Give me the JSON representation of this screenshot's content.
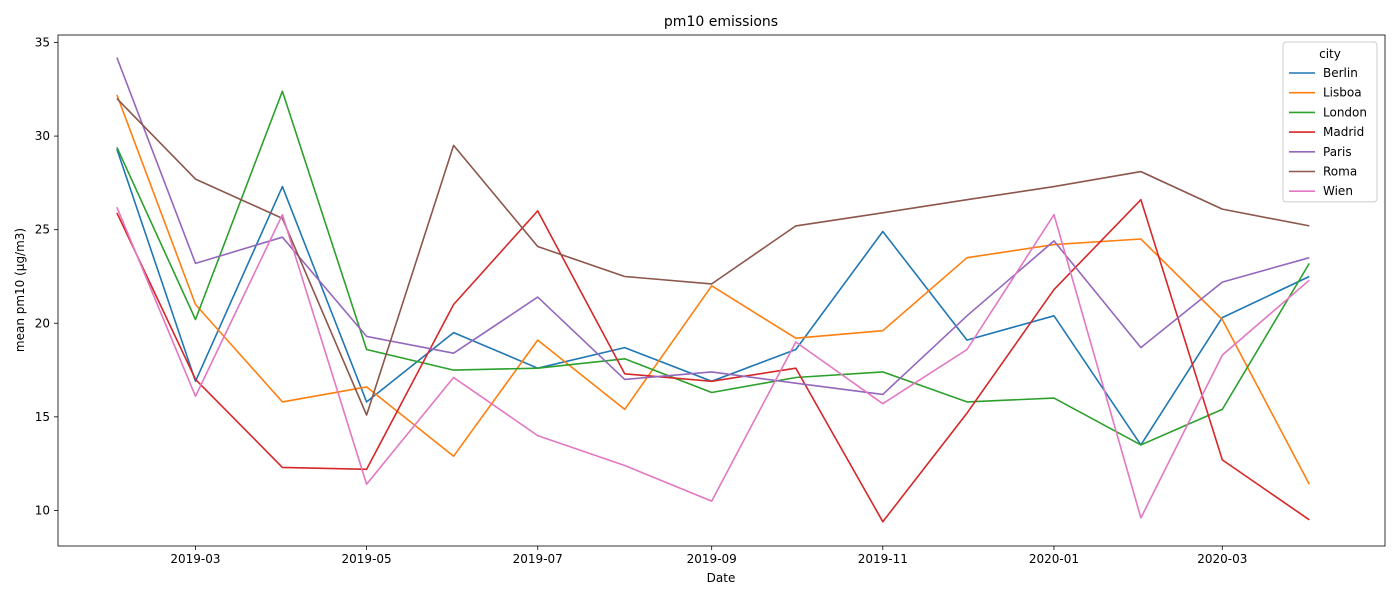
{
  "chart_data": {
    "type": "line",
    "title": "pm10 emissions",
    "xlabel": "Date",
    "ylabel": "mean pm10 (µg/m3)",
    "x": [
      "2019-02",
      "2019-03",
      "2019-04",
      "2019-05",
      "2019-06",
      "2019-07",
      "2019-08",
      "2019-09",
      "2019-10",
      "2019-11",
      "2019-12",
      "2020-01",
      "2020-02",
      "2020-03",
      "2020-04"
    ],
    "xlim": [
      "2019-01-11",
      "2020-04-28"
    ],
    "xticks": [
      "2019-03",
      "2019-05",
      "2019-07",
      "2019-09",
      "2019-11",
      "2020-01",
      "2020-03"
    ],
    "ylim": [
      8.1,
      35.4
    ],
    "yticks": [
      10,
      15,
      20,
      25,
      30,
      35
    ],
    "grid": false,
    "legend": {
      "title": "city",
      "placement": "top-right"
    },
    "series": [
      {
        "name": "Berlin",
        "color": "#1f77b4",
        "values": [
          29.3,
          16.9,
          27.3,
          15.8,
          19.5,
          17.6,
          18.7,
          16.9,
          18.6,
          24.9,
          19.1,
          20.4,
          13.5,
          20.3,
          22.5
        ]
      },
      {
        "name": "Lisboa",
        "color": "#ff7f0e",
        "values": [
          32.2,
          21.0,
          15.8,
          16.6,
          12.9,
          19.1,
          15.4,
          22.0,
          19.2,
          19.6,
          23.5,
          24.2,
          24.5,
          20.2,
          11.4
        ]
      },
      {
        "name": "London",
        "color": "#2ca02c",
        "values": [
          29.4,
          20.2,
          32.4,
          18.6,
          17.5,
          17.6,
          18.1,
          16.3,
          17.1,
          17.4,
          15.8,
          16.0,
          13.5,
          15.4,
          23.2
        ]
      },
      {
        "name": "Madrid",
        "color": "#d62728",
        "values": [
          25.9,
          17.0,
          12.3,
          12.2,
          21.0,
          26.0,
          17.3,
          16.9,
          17.6,
          9.4,
          15.2,
          21.8,
          26.6,
          12.7,
          9.5
        ]
      },
      {
        "name": "Paris",
        "color": "#9467bd",
        "values": [
          34.2,
          23.2,
          24.6,
          19.3,
          18.4,
          21.4,
          17.0,
          17.4,
          16.8,
          16.2,
          20.4,
          24.4,
          18.7,
          22.2,
          23.5
        ]
      },
      {
        "name": "Roma",
        "color": "#8c564b",
        "values": [
          32.0,
          27.7,
          25.6,
          15.1,
          29.5,
          24.1,
          22.5,
          22.1,
          25.2,
          25.9,
          26.6,
          27.3,
          28.1,
          26.1,
          25.2
        ]
      },
      {
        "name": "Wien",
        "color": "#e377c2",
        "values": [
          26.2,
          16.1,
          25.8,
          11.4,
          17.1,
          14.0,
          12.4,
          10.5,
          19.0,
          15.7,
          18.6,
          25.8,
          9.6,
          18.3,
          22.3
        ]
      }
    ]
  }
}
